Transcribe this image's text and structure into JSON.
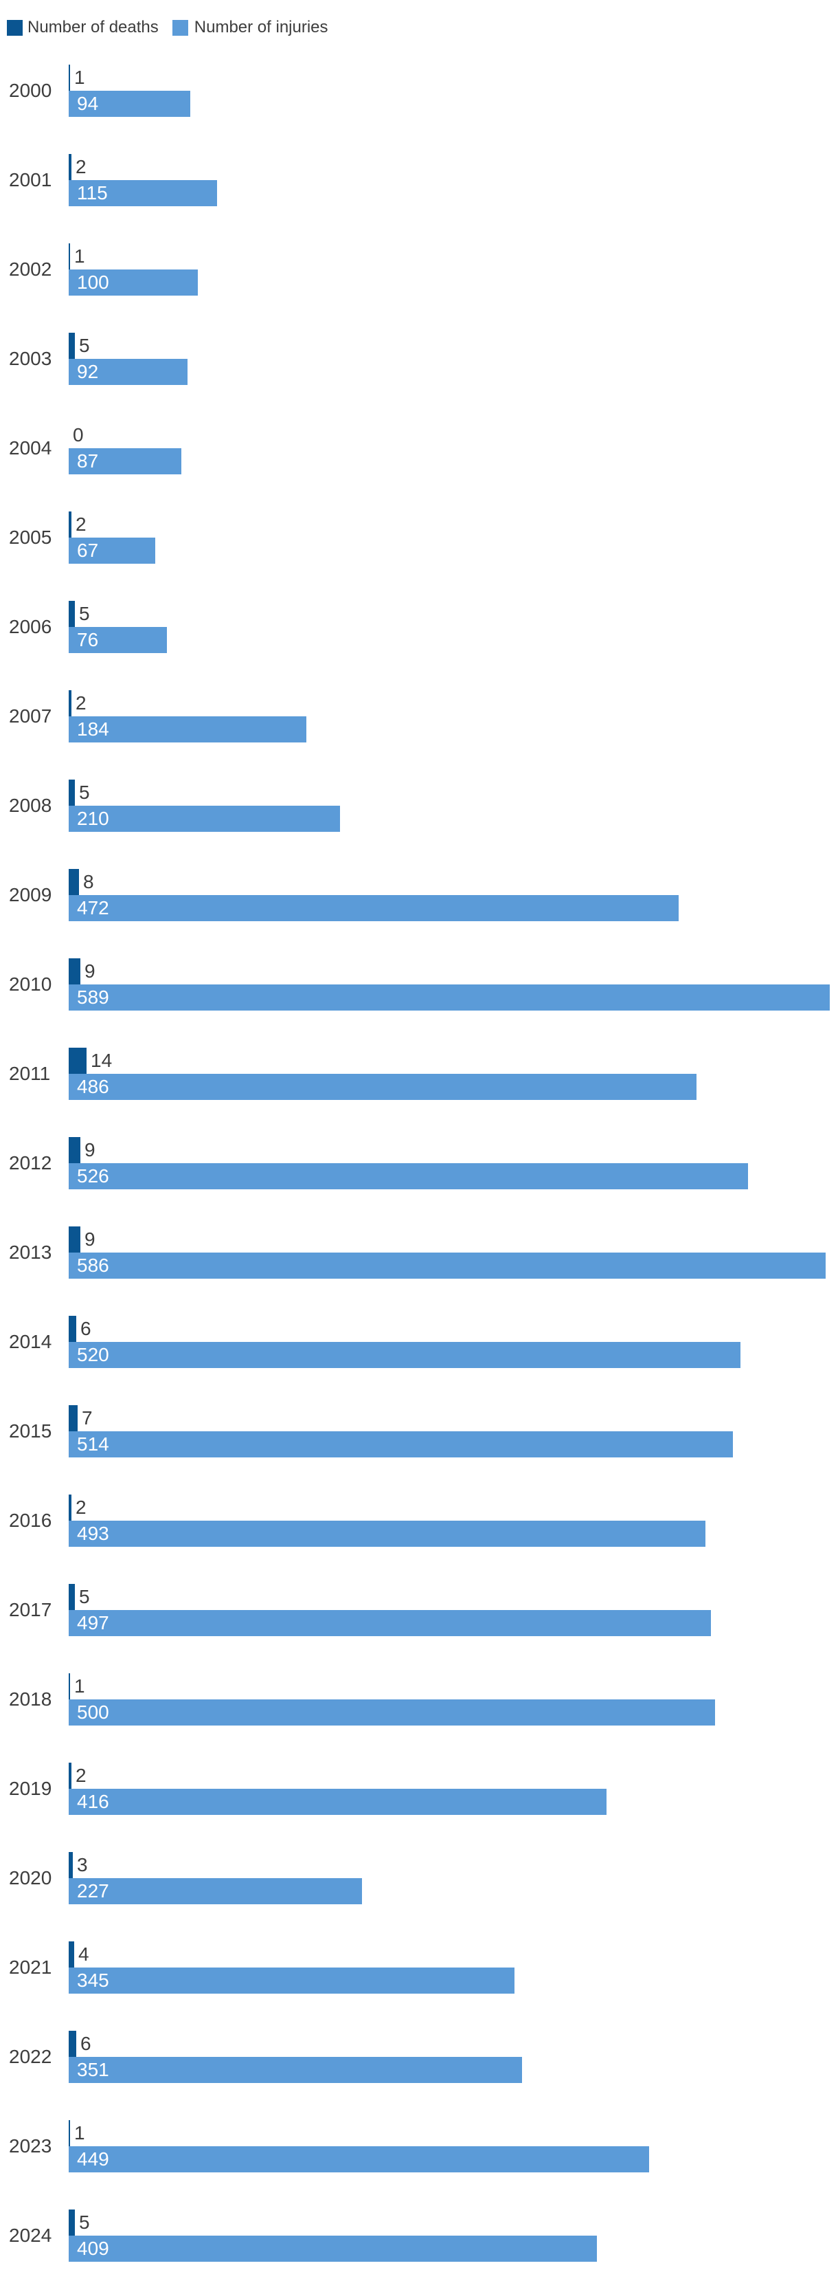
{
  "legend": {
    "deaths_label": "Number of deaths",
    "injuries_label": "Number of injuries"
  },
  "colors": {
    "deaths_bar": "#0a5591",
    "injuries_bar": "#5b9bd8",
    "text": "#3d3d3d",
    "bar_value_text": "#ffffff",
    "background": "#ffffff"
  },
  "chart_data": {
    "type": "bar",
    "orientation": "horizontal",
    "categories": [
      "2000",
      "2001",
      "2002",
      "2003",
      "2004",
      "2005",
      "2006",
      "2007",
      "2008",
      "2009",
      "2010",
      "2011",
      "2012",
      "2013",
      "2014",
      "2015",
      "2016",
      "2017",
      "2018",
      "2019",
      "2020",
      "2021",
      "2022",
      "2023",
      "2024"
    ],
    "series": [
      {
        "name": "Number of deaths",
        "values": [
          1,
          2,
          1,
          5,
          0,
          2,
          5,
          2,
          5,
          8,
          9,
          14,
          9,
          9,
          6,
          7,
          2,
          5,
          1,
          2,
          3,
          4,
          6,
          1,
          5
        ]
      },
      {
        "name": "Number of injuries",
        "values": [
          94,
          115,
          100,
          92,
          87,
          67,
          76,
          184,
          210,
          472,
          589,
          486,
          526,
          586,
          520,
          514,
          493,
          497,
          500,
          416,
          227,
          345,
          351,
          449,
          409
        ]
      }
    ],
    "value_labels_shown": true,
    "legend_position": "top-left",
    "xlim": [
      0,
      589
    ],
    "grid": false
  }
}
